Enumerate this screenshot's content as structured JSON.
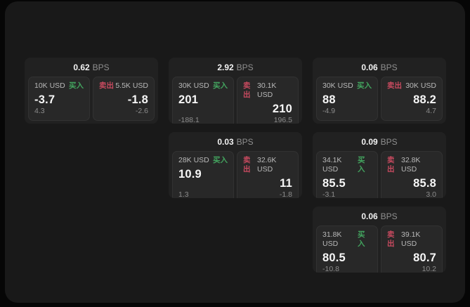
{
  "theme": {
    "background": "#060606",
    "surface": "#191919",
    "card": "#212121",
    "panel": "#282828",
    "buy_color": "#43a55f",
    "sell_color": "#c74a5f"
  },
  "cards": [
    {
      "bps": {
        "value": "0.62",
        "unit": "BPS"
      },
      "buy": {
        "amount_label": "10K USD",
        "side_label": "买入",
        "price": "-3.7",
        "change": "4.3"
      },
      "sell": {
        "side_label": "卖出",
        "amount_label": "5.5K USD",
        "price": "-1.8",
        "change": "-2.6"
      }
    },
    {
      "bps": {
        "value": "2.92",
        "unit": "BPS"
      },
      "buy": {
        "amount_label": "30K USD",
        "side_label": "买入",
        "price": "201",
        "change": "-188.1"
      },
      "sell": {
        "side_label": "卖出",
        "amount_label": "30.1K USD",
        "price": "210",
        "change": "196.5"
      }
    },
    {
      "bps": {
        "value": "0.06",
        "unit": "BPS"
      },
      "buy": {
        "amount_label": "30K USD",
        "side_label": "买入",
        "price": "88",
        "change": "-4.9"
      },
      "sell": {
        "side_label": "卖出",
        "amount_label": "30K USD",
        "price": "88.2",
        "change": "4.7"
      }
    },
    {
      "bps": {
        "value": "0.03",
        "unit": "BPS"
      },
      "buy": {
        "amount_label": "28K USD",
        "side_label": "买入",
        "price": "10.9",
        "change": "1.3"
      },
      "sell": {
        "side_label": "卖出",
        "amount_label": "32.6K USD",
        "price": "11",
        "change": "-1.8"
      }
    },
    {
      "bps": {
        "value": "0.09",
        "unit": "BPS"
      },
      "buy": {
        "amount_label": "34.1K USD",
        "side_label": "买入",
        "price": "85.5",
        "change": "-3.1"
      },
      "sell": {
        "side_label": "卖出",
        "amount_label": "32.8K USD",
        "price": "85.8",
        "change": "3.0"
      }
    },
    {
      "bps": {
        "value": "0.06",
        "unit": "BPS"
      },
      "buy": {
        "amount_label": "31.8K USD",
        "side_label": "买入",
        "price": "80.5",
        "change": "-10.8"
      },
      "sell": {
        "side_label": "卖出",
        "amount_label": "39.1K USD",
        "price": "80.7",
        "change": "10.2"
      }
    }
  ]
}
